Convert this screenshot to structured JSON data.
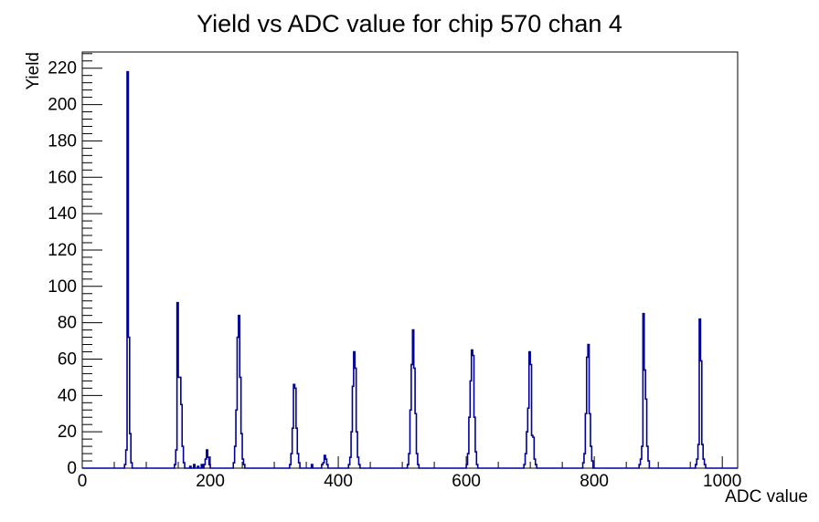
{
  "chart_data": {
    "type": "bar",
    "title": "Yield vs ADC value for chip 570 chan 4",
    "xlabel": "ADC value",
    "ylabel": "Yield",
    "xlim": [
      0,
      1024
    ],
    "ylim": [
      0,
      228.9
    ],
    "x_major_ticks": [
      0,
      200,
      400,
      600,
      800,
      1000
    ],
    "x_major_step": 200,
    "x_minor_step": 50,
    "y_major_ticks": [
      0,
      20,
      40,
      60,
      80,
      100,
      120,
      140,
      160,
      180,
      200,
      220
    ],
    "y_major_step": 20,
    "y_minor_step": 4,
    "grid": false,
    "legend": "none",
    "line_color": "#000099",
    "axis_color": "#000000",
    "background_color": "#ffffff",
    "bin_width": 2,
    "peaks": [
      {
        "adc": 70,
        "yield": 218
      },
      {
        "adc": 150,
        "yield": 91
      },
      {
        "adc": 195,
        "yield": 10
      },
      {
        "adc": 244,
        "yield": 84
      },
      {
        "adc": 332,
        "yield": 46
      },
      {
        "adc": 379,
        "yield": 7
      },
      {
        "adc": 424,
        "yield": 64
      },
      {
        "adc": 516,
        "yield": 76
      },
      {
        "adc": 608,
        "yield": 65
      },
      {
        "adc": 698,
        "yield": 64
      },
      {
        "adc": 790,
        "yield": 68
      },
      {
        "adc": 878,
        "yield": 85
      },
      {
        "adc": 966,
        "yield": 82
      }
    ],
    "bins": [
      [
        66,
        2
      ],
      [
        68,
        10
      ],
      [
        70,
        218
      ],
      [
        72,
        72
      ],
      [
        74,
        19
      ],
      [
        76,
        3
      ],
      [
        144,
        2
      ],
      [
        146,
        10
      ],
      [
        148,
        91
      ],
      [
        150,
        50
      ],
      [
        152,
        50
      ],
      [
        154,
        35
      ],
      [
        156,
        12
      ],
      [
        158,
        3
      ],
      [
        168,
        1
      ],
      [
        174,
        2
      ],
      [
        180,
        1
      ],
      [
        186,
        2
      ],
      [
        190,
        2
      ],
      [
        192,
        5
      ],
      [
        194,
        10
      ],
      [
        196,
        6
      ],
      [
        198,
        2
      ],
      [
        236,
        3
      ],
      [
        238,
        12
      ],
      [
        240,
        32
      ],
      [
        242,
        72
      ],
      [
        244,
        84
      ],
      [
        246,
        50
      ],
      [
        248,
        19
      ],
      [
        250,
        5
      ],
      [
        252,
        2
      ],
      [
        324,
        2
      ],
      [
        326,
        8
      ],
      [
        328,
        22
      ],
      [
        330,
        46
      ],
      [
        332,
        44
      ],
      [
        334,
        22
      ],
      [
        336,
        8
      ],
      [
        338,
        3
      ],
      [
        358,
        2
      ],
      [
        374,
        2
      ],
      [
        376,
        3
      ],
      [
        378,
        7
      ],
      [
        380,
        5
      ],
      [
        382,
        2
      ],
      [
        416,
        2
      ],
      [
        418,
        6
      ],
      [
        420,
        20
      ],
      [
        422,
        45
      ],
      [
        424,
        64
      ],
      [
        426,
        55
      ],
      [
        428,
        20
      ],
      [
        430,
        6
      ],
      [
        432,
        2
      ],
      [
        508,
        2
      ],
      [
        510,
        8
      ],
      [
        512,
        32
      ],
      [
        514,
        57
      ],
      [
        516,
        76
      ],
      [
        518,
        55
      ],
      [
        520,
        30
      ],
      [
        522,
        8
      ],
      [
        524,
        2
      ],
      [
        600,
        2
      ],
      [
        602,
        8
      ],
      [
        604,
        28
      ],
      [
        606,
        48
      ],
      [
        608,
        65
      ],
      [
        610,
        62
      ],
      [
        612,
        28
      ],
      [
        614,
        9
      ],
      [
        616,
        2
      ],
      [
        690,
        2
      ],
      [
        692,
        8
      ],
      [
        694,
        20
      ],
      [
        696,
        33
      ],
      [
        698,
        64
      ],
      [
        700,
        57
      ],
      [
        702,
        18
      ],
      [
        704,
        17
      ],
      [
        706,
        5
      ],
      [
        708,
        2
      ],
      [
        782,
        3
      ],
      [
        784,
        8
      ],
      [
        786,
        30
      ],
      [
        788,
        61
      ],
      [
        790,
        68
      ],
      [
        792,
        30
      ],
      [
        794,
        12
      ],
      [
        796,
        4
      ],
      [
        870,
        2
      ],
      [
        872,
        5
      ],
      [
        874,
        12
      ],
      [
        876,
        85
      ],
      [
        878,
        54
      ],
      [
        880,
        38
      ],
      [
        882,
        12
      ],
      [
        884,
        4
      ],
      [
        958,
        2
      ],
      [
        960,
        5
      ],
      [
        962,
        13
      ],
      [
        964,
        82
      ],
      [
        966,
        59
      ],
      [
        968,
        13
      ],
      [
        970,
        5
      ],
      [
        972,
        2
      ]
    ]
  }
}
